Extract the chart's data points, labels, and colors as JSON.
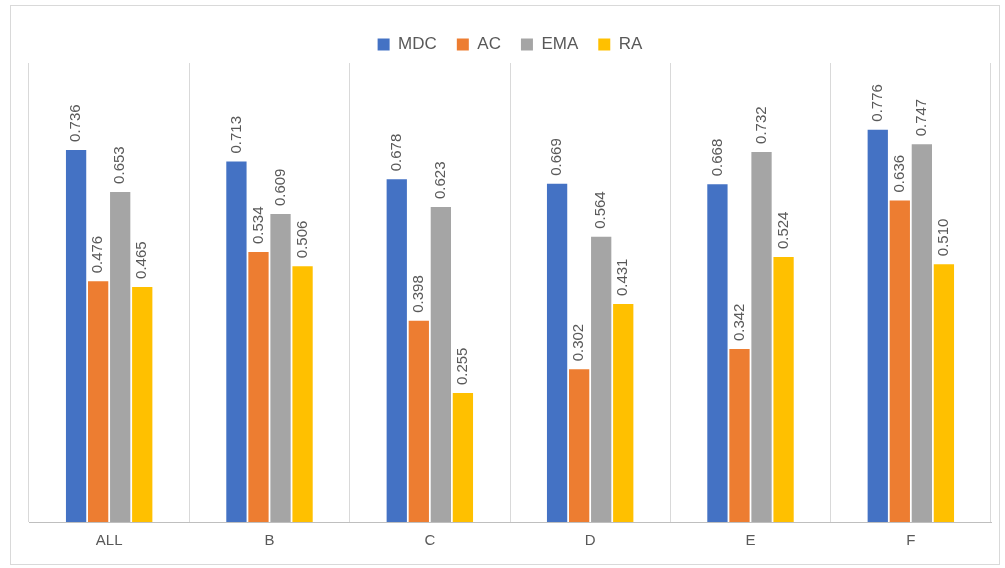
{
  "chart_data": {
    "type": "bar",
    "categories": [
      "ALL",
      "B",
      "C",
      "D",
      "E",
      "F"
    ],
    "series": [
      {
        "name": "MDC",
        "color": "#4472c4",
        "values": [
          0.736,
          0.713,
          0.678,
          0.669,
          0.668,
          0.776
        ],
        "value_labels": [
          "0.736",
          "0.713",
          "0.678",
          "0.669",
          "0.668",
          "0.776"
        ]
      },
      {
        "name": "AC",
        "color": "#ed7d31",
        "values": [
          0.476,
          0.534,
          0.398,
          0.302,
          0.342,
          0.636
        ],
        "value_labels": [
          "0.476",
          "0.534",
          "0.398",
          "0.302",
          "0.342",
          "0.636"
        ]
      },
      {
        "name": "EMA",
        "color": "#a5a5a5",
        "values": [
          0.653,
          0.609,
          0.623,
          0.564,
          0.732,
          0.747
        ],
        "value_labels": [
          "0.653",
          "0.609",
          "0.623",
          "0.564",
          "0.732",
          "0.747"
        ]
      },
      {
        "name": "RA",
        "color": "#ffc000",
        "values": [
          0.465,
          0.506,
          0.255,
          0.431,
          0.524,
          0.51
        ],
        "value_labels": [
          "0.465",
          "0.506",
          "0.255",
          "0.431",
          "0.524",
          "0.510"
        ]
      }
    ],
    "grid": "x",
    "legend": "top",
    "tick_labels": "x"
  }
}
